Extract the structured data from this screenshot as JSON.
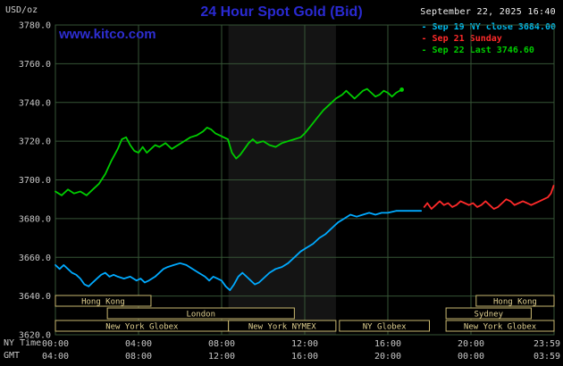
{
  "header": {
    "units": "USD/oz",
    "title": "24 Hour Spot Gold (Bid)",
    "datetime": "September 22, 2025 16:40",
    "watermark": "www.kitco.com"
  },
  "legend": {
    "items": [
      {
        "text": "- Sep 19 NY close 3684.00",
        "color": "#00bbee"
      },
      {
        "text": "- Sep 21 Sunday",
        "color": "#ff2a2a"
      },
      {
        "text": "- Sep 22 Last 3746.60",
        "color": "#00cc00"
      }
    ]
  },
  "axes": {
    "ny_time_label": "NY Time",
    "gmt_label": "GMT",
    "ny_ticks": [
      "00:00",
      "04:00",
      "08:00",
      "12:00",
      "16:00",
      "20:00",
      "23:59"
    ],
    "gmt_ticks": [
      "04:00",
      "08:00",
      "12:00",
      "16:00",
      "20:00",
      "00:00",
      "03:59"
    ],
    "y_ticks": [
      "3780.0",
      "3760.0",
      "3740.0",
      "3720.0",
      "3700.0",
      "3680.0",
      "3660.0",
      "3640.0",
      "3620.0"
    ]
  },
  "chart_data": {
    "type": "line",
    "title": "24 Hour Spot Gold (Bid)",
    "ylabel": "USD/oz",
    "xlabel": "NY Time / GMT",
    "legend_position": "top-right",
    "grid": true,
    "xlim": [
      0,
      24
    ],
    "ylim": [
      3620,
      3780
    ],
    "y_tick_step": 20,
    "x_tick_hours": [
      0,
      4,
      8,
      12,
      16,
      20,
      23.983
    ],
    "grid_color": "#365536",
    "band": {
      "name": "nymex-floor-session",
      "start": 8.33,
      "end": 13.5,
      "color": "#141414"
    },
    "session_box_color": "#c9b870",
    "session_text_color": "#e0d090",
    "sessions": [
      {
        "row": 0,
        "start": 0,
        "end": 4.6,
        "label": "Hong Kong"
      },
      {
        "row": 0,
        "start": 20.25,
        "end": 24,
        "label": "Hong Kong"
      },
      {
        "row": 1,
        "start": 2.5,
        "end": 11.5,
        "label": "London"
      },
      {
        "row": 1,
        "start": 18.8,
        "end": 22.9,
        "label": "Sydney"
      },
      {
        "row": 2,
        "start": 0,
        "end": 8.33,
        "label": "New York Globex"
      },
      {
        "row": 2,
        "start": 8.33,
        "end": 13.5,
        "label": "New York NYMEX"
      },
      {
        "row": 2,
        "start": 13.67,
        "end": 18.0,
        "label": "NY Globex"
      },
      {
        "row": 2,
        "start": 18.8,
        "end": 24,
        "label": "New York Globex"
      }
    ],
    "series": [
      {
        "name": "Sep 19 NY close",
        "color": "#00aaff",
        "end_dot": false,
        "points": [
          [
            0,
            3656
          ],
          [
            0.2,
            3654
          ],
          [
            0.4,
            3656
          ],
          [
            0.6,
            3654
          ],
          [
            0.8,
            3652
          ],
          [
            1.0,
            3651
          ],
          [
            1.2,
            3649
          ],
          [
            1.4,
            3646
          ],
          [
            1.6,
            3645
          ],
          [
            1.8,
            3647
          ],
          [
            2.0,
            3649
          ],
          [
            2.2,
            3651
          ],
          [
            2.4,
            3652
          ],
          [
            2.6,
            3650
          ],
          [
            2.8,
            3651
          ],
          [
            3.0,
            3650
          ],
          [
            3.3,
            3649
          ],
          [
            3.6,
            3650
          ],
          [
            3.9,
            3648
          ],
          [
            4.1,
            3649
          ],
          [
            4.3,
            3647
          ],
          [
            4.5,
            3648
          ],
          [
            4.8,
            3650
          ],
          [
            5.0,
            3652
          ],
          [
            5.2,
            3654
          ],
          [
            5.4,
            3655
          ],
          [
            5.7,
            3656
          ],
          [
            6.0,
            3657
          ],
          [
            6.3,
            3656
          ],
          [
            6.6,
            3654
          ],
          [
            6.9,
            3652
          ],
          [
            7.2,
            3650
          ],
          [
            7.4,
            3648
          ],
          [
            7.6,
            3650
          ],
          [
            7.8,
            3649
          ],
          [
            8.0,
            3648
          ],
          [
            8.2,
            3645
          ],
          [
            8.4,
            3643
          ],
          [
            8.6,
            3646
          ],
          [
            8.8,
            3650
          ],
          [
            9.0,
            3652
          ],
          [
            9.2,
            3650
          ],
          [
            9.4,
            3648
          ],
          [
            9.6,
            3646
          ],
          [
            9.8,
            3647
          ],
          [
            10.0,
            3649
          ],
          [
            10.3,
            3652
          ],
          [
            10.6,
            3654
          ],
          [
            10.9,
            3655
          ],
          [
            11.2,
            3657
          ],
          [
            11.5,
            3660
          ],
          [
            11.8,
            3663
          ],
          [
            12.1,
            3665
          ],
          [
            12.4,
            3667
          ],
          [
            12.7,
            3670
          ],
          [
            13.0,
            3672
          ],
          [
            13.3,
            3675
          ],
          [
            13.6,
            3678
          ],
          [
            13.9,
            3680
          ],
          [
            14.2,
            3682
          ],
          [
            14.5,
            3681
          ],
          [
            14.8,
            3682
          ],
          [
            15.1,
            3683
          ],
          [
            15.4,
            3682
          ],
          [
            15.7,
            3683
          ],
          [
            16.0,
            3683
          ],
          [
            16.4,
            3684
          ],
          [
            16.8,
            3684
          ],
          [
            17.2,
            3684
          ],
          [
            17.6,
            3684
          ]
        ]
      },
      {
        "name": "Sep 21 Sunday",
        "color": "#ff2a2a",
        "end_dot": false,
        "points": [
          [
            17.75,
            3686
          ],
          [
            17.9,
            3688
          ],
          [
            18.1,
            3685
          ],
          [
            18.3,
            3687
          ],
          [
            18.5,
            3689
          ],
          [
            18.7,
            3687
          ],
          [
            18.9,
            3688
          ],
          [
            19.1,
            3686
          ],
          [
            19.3,
            3687
          ],
          [
            19.5,
            3689
          ],
          [
            19.7,
            3688
          ],
          [
            19.9,
            3687
          ],
          [
            20.1,
            3688
          ],
          [
            20.3,
            3686
          ],
          [
            20.5,
            3687
          ],
          [
            20.7,
            3689
          ],
          [
            20.9,
            3687
          ],
          [
            21.1,
            3685
          ],
          [
            21.3,
            3686
          ],
          [
            21.5,
            3688
          ],
          [
            21.7,
            3690
          ],
          [
            21.9,
            3689
          ],
          [
            22.1,
            3687
          ],
          [
            22.3,
            3688
          ],
          [
            22.5,
            3689
          ],
          [
            22.7,
            3688
          ],
          [
            22.9,
            3687
          ],
          [
            23.1,
            3688
          ],
          [
            23.3,
            3689
          ],
          [
            23.5,
            3690
          ],
          [
            23.7,
            3691
          ],
          [
            23.85,
            3693
          ],
          [
            23.98,
            3697
          ]
        ]
      },
      {
        "name": "Sep 22 Last",
        "color": "#00cc00",
        "end_dot": true,
        "points": [
          [
            0,
            3694
          ],
          [
            0.3,
            3692
          ],
          [
            0.6,
            3695
          ],
          [
            0.9,
            3693
          ],
          [
            1.2,
            3694
          ],
          [
            1.5,
            3692
          ],
          [
            1.8,
            3695
          ],
          [
            2.1,
            3698
          ],
          [
            2.4,
            3703
          ],
          [
            2.7,
            3710
          ],
          [
            3.0,
            3716
          ],
          [
            3.2,
            3721
          ],
          [
            3.4,
            3722
          ],
          [
            3.6,
            3718
          ],
          [
            3.8,
            3715
          ],
          [
            4.0,
            3714
          ],
          [
            4.2,
            3717
          ],
          [
            4.4,
            3714
          ],
          [
            4.6,
            3716
          ],
          [
            4.8,
            3718
          ],
          [
            5.0,
            3717
          ],
          [
            5.3,
            3719
          ],
          [
            5.6,
            3716
          ],
          [
            5.9,
            3718
          ],
          [
            6.2,
            3720
          ],
          [
            6.5,
            3722
          ],
          [
            6.8,
            3723
          ],
          [
            7.1,
            3725
          ],
          [
            7.3,
            3727
          ],
          [
            7.5,
            3726
          ],
          [
            7.7,
            3724
          ],
          [
            7.9,
            3723
          ],
          [
            8.1,
            3722
          ],
          [
            8.3,
            3721
          ],
          [
            8.5,
            3714
          ],
          [
            8.7,
            3711
          ],
          [
            8.9,
            3713
          ],
          [
            9.1,
            3716
          ],
          [
            9.3,
            3719
          ],
          [
            9.5,
            3721
          ],
          [
            9.7,
            3719
          ],
          [
            10.0,
            3720
          ],
          [
            10.3,
            3718
          ],
          [
            10.6,
            3717
          ],
          [
            10.9,
            3719
          ],
          [
            11.2,
            3720
          ],
          [
            11.5,
            3721
          ],
          [
            11.8,
            3722
          ],
          [
            12.0,
            3724
          ],
          [
            12.3,
            3728
          ],
          [
            12.6,
            3732
          ],
          [
            12.9,
            3736
          ],
          [
            13.1,
            3738
          ],
          [
            13.3,
            3740
          ],
          [
            13.5,
            3742
          ],
          [
            13.8,
            3744
          ],
          [
            14.0,
            3746
          ],
          [
            14.2,
            3744
          ],
          [
            14.4,
            3742
          ],
          [
            14.6,
            3744
          ],
          [
            14.8,
            3746
          ],
          [
            15.0,
            3747
          ],
          [
            15.2,
            3745
          ],
          [
            15.4,
            3743
          ],
          [
            15.6,
            3744
          ],
          [
            15.8,
            3746
          ],
          [
            16.0,
            3745
          ],
          [
            16.2,
            3743
          ],
          [
            16.4,
            3745
          ],
          [
            16.67,
            3746.6
          ]
        ]
      }
    ]
  }
}
